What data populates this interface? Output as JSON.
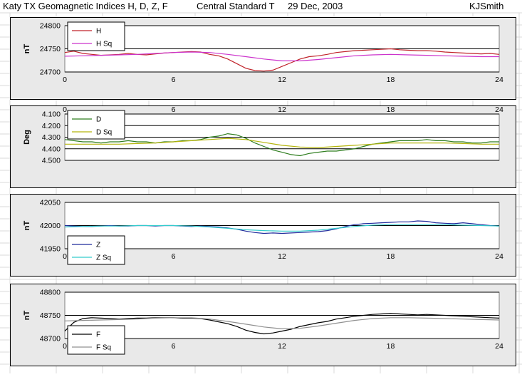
{
  "header": {
    "title": "Katy TX Geomagnetic Indices H, D, Z, F",
    "timezone": "Central Standard T",
    "date": "29 Dec, 2003",
    "author": "KJSmith"
  },
  "colors": {
    "h": "#c0232a",
    "h_sq": "#cc33cc",
    "d": "#2e7d1e",
    "d_sq": "#b5b50c",
    "z": "#1f2a9c",
    "z_sq": "#33cccc",
    "f": "#000000",
    "f_sq": "#909090",
    "panel_bg": "#e9e9e9",
    "plot_bg": "#ffffff"
  },
  "chart_data": [
    {
      "type": "line",
      "title": "",
      "xlabel": "",
      "ylabel": "nT",
      "xlim": [
        0,
        24
      ],
      "ylim": [
        24700,
        24800
      ],
      "x_ticks": [
        "0",
        "6",
        "12",
        "18",
        "24"
      ],
      "y_ticks": [
        "24800",
        "24750",
        "24700"
      ],
      "x_axis_position": "bottom",
      "grid": true,
      "legend": "top-left",
      "series": [
        {
          "name": "H",
          "color": "#c0232a",
          "x": [
            0,
            0.5,
            1,
            1.5,
            2,
            2.5,
            3,
            3.5,
            4,
            4.5,
            5,
            5.5,
            6,
            6.5,
            7,
            7.5,
            8,
            8.5,
            9,
            9.5,
            10,
            10.5,
            11,
            11.5,
            12,
            12.5,
            13,
            13.5,
            14,
            14.5,
            15,
            15.5,
            16,
            16.5,
            17,
            17.5,
            18,
            18.5,
            19,
            19.5,
            20,
            20.5,
            21,
            21.5,
            22,
            22.5,
            23,
            23.5,
            24
          ],
          "y": [
            24742,
            24745,
            24740,
            24738,
            24736,
            24737,
            24738,
            24740,
            24738,
            24737,
            24739,
            24741,
            24742,
            24743,
            24744,
            24743,
            24738,
            24735,
            24728,
            24718,
            24708,
            24703,
            24702,
            24704,
            24712,
            24720,
            24728,
            24733,
            24735,
            24738,
            24742,
            24744,
            24746,
            24747,
            24748,
            24749,
            24750,
            24748,
            24747,
            24746,
            24746,
            24745,
            24743,
            24742,
            24741,
            24740,
            24739,
            24740,
            24738
          ]
        },
        {
          "name": "H Sq",
          "color": "#cc33cc",
          "x": [
            0,
            1,
            2,
            3,
            4,
            5,
            6,
            7,
            8,
            9,
            10,
            11,
            12,
            13,
            14,
            15,
            16,
            17,
            18,
            19,
            20,
            21,
            22,
            23,
            24
          ],
          "y": [
            24734,
            24735,
            24736,
            24737,
            24738,
            24740,
            24742,
            24743,
            24742,
            24738,
            24733,
            24728,
            24724,
            24724,
            24727,
            24731,
            24735,
            24737,
            24738,
            24737,
            24736,
            24735,
            24734,
            24733,
            24733
          ]
        }
      ]
    },
    {
      "type": "line",
      "title": "",
      "xlabel": "",
      "ylabel": "Deg",
      "xlim": [
        0,
        24
      ],
      "ylim": [
        4.1,
        4.5
      ],
      "y_inverted": true,
      "x_ticks": [
        "0",
        "6",
        "12",
        "18",
        "24"
      ],
      "y_ticks": [
        "4.100",
        "4.200",
        "4.300",
        "4.400",
        "4.500"
      ],
      "x_axis_position": "top",
      "grid": true,
      "legend": "top-left",
      "series": [
        {
          "name": "D",
          "color": "#2e7d1e",
          "x": [
            0,
            0.5,
            1,
            1.5,
            2,
            2.5,
            3,
            3.5,
            4,
            4.5,
            5,
            5.5,
            6,
            6.5,
            7,
            7.5,
            8,
            8.5,
            9,
            9.5,
            10,
            10.5,
            11,
            11.5,
            12,
            12.5,
            13,
            13.5,
            14,
            14.5,
            15,
            15.5,
            16,
            16.5,
            17,
            17.5,
            18,
            18.5,
            19,
            19.5,
            20,
            20.5,
            21,
            21.5,
            22,
            22.5,
            23,
            23.5,
            24
          ],
          "y": [
            4.32,
            4.33,
            4.34,
            4.34,
            4.35,
            4.34,
            4.34,
            4.33,
            4.34,
            4.34,
            4.35,
            4.34,
            4.34,
            4.33,
            4.33,
            4.32,
            4.3,
            4.29,
            4.27,
            4.28,
            4.31,
            4.35,
            4.38,
            4.41,
            4.43,
            4.45,
            4.46,
            4.44,
            4.43,
            4.42,
            4.42,
            4.41,
            4.4,
            4.38,
            4.36,
            4.35,
            4.34,
            4.33,
            4.33,
            4.33,
            4.32,
            4.33,
            4.33,
            4.34,
            4.34,
            4.35,
            4.35,
            4.34,
            4.34
          ]
        },
        {
          "name": "D Sq",
          "color": "#b5b50c",
          "x": [
            0,
            1,
            2,
            3,
            4,
            5,
            6,
            7,
            8,
            9,
            10,
            11,
            12,
            13,
            14,
            15,
            16,
            17,
            18,
            19,
            20,
            21,
            22,
            23,
            24
          ],
          "y": [
            4.36,
            4.36,
            4.36,
            4.36,
            4.355,
            4.35,
            4.34,
            4.33,
            4.32,
            4.31,
            4.32,
            4.345,
            4.37,
            4.385,
            4.39,
            4.38,
            4.37,
            4.36,
            4.35,
            4.35,
            4.35,
            4.35,
            4.355,
            4.36,
            4.36
          ]
        }
      ]
    },
    {
      "type": "line",
      "title": "",
      "xlabel": "",
      "ylabel": "nT",
      "xlim": [
        0,
        24
      ],
      "ylim": [
        41950,
        42050
      ],
      "x_ticks": [
        "0",
        "6",
        "12",
        "18",
        "24"
      ],
      "y_ticks": [
        "42050",
        "42000",
        "41950"
      ],
      "x_axis_position": "bottom",
      "grid": true,
      "legend": "bottom-left",
      "series": [
        {
          "name": "Z",
          "color": "#1f2a9c",
          "x": [
            0,
            0.5,
            1,
            1.5,
            2,
            2.5,
            3,
            3.5,
            4,
            4.5,
            5,
            5.5,
            6,
            6.5,
            7,
            7.5,
            8,
            8.5,
            9,
            9.5,
            10,
            10.5,
            11,
            11.5,
            12,
            12.5,
            13,
            13.5,
            14,
            14.5,
            15,
            15.5,
            16,
            16.5,
            17,
            17.5,
            18,
            18.5,
            19,
            19.5,
            20,
            20.5,
            21,
            21.5,
            22,
            22.5,
            23,
            23.5,
            24
          ],
          "y": [
            42000,
            41999,
            41998,
            41998,
            41999,
            42000,
            41999,
            41999,
            42000,
            42000,
            41999,
            42000,
            42000,
            41999,
            41998,
            41999,
            41998,
            41997,
            41995,
            41992,
            41988,
            41985,
            41983,
            41984,
            41983,
            41984,
            41985,
            41986,
            41987,
            41989,
            41993,
            41998,
            42002,
            42004,
            42005,
            42006,
            42007,
            42008,
            42008,
            42010,
            42009,
            42006,
            42005,
            42004,
            42006,
            42004,
            42002,
            42000,
            41999
          ]
        },
        {
          "name": "Z Sq",
          "color": "#33cccc",
          "x": [
            0,
            1,
            2,
            3,
            4,
            5,
            6,
            7,
            8,
            9,
            10,
            11,
            12,
            13,
            14,
            15,
            16,
            17,
            18,
            19,
            20,
            21,
            22,
            23,
            24
          ],
          "y": [
            41997,
            41998,
            41999,
            41999,
            42000,
            42000,
            42000,
            41999,
            41997,
            41994,
            41991,
            41989,
            41988,
            41988,
            41990,
            41994,
            41998,
            42001,
            42002,
            42002,
            42002,
            42002,
            42001,
            42000,
            41999
          ]
        }
      ]
    },
    {
      "type": "line",
      "title": "",
      "xlabel": "",
      "ylabel": "nT",
      "xlim": [
        0,
        24
      ],
      "ylim": [
        48700,
        48800
      ],
      "x_ticks": [
        "0",
        "6",
        "12",
        "18",
        "24"
      ],
      "y_ticks": [
        "48800",
        "48750",
        "48700"
      ],
      "x_axis_position": "bottom",
      "grid": true,
      "legend": "bottom-left",
      "series": [
        {
          "name": "F",
          "color": "#000000",
          "x": [
            0,
            0.5,
            1,
            1.5,
            2,
            2.5,
            3,
            3.5,
            4,
            4.5,
            5,
            5.5,
            6,
            6.5,
            7,
            7.5,
            8,
            8.5,
            9,
            9.5,
            10,
            10.5,
            11,
            11.5,
            12,
            12.5,
            13,
            13.5,
            14,
            14.5,
            15,
            15.5,
            16,
            16.5,
            17,
            17.5,
            18,
            18.5,
            19,
            19.5,
            20,
            20.5,
            21,
            21.5,
            22,
            22.5,
            23,
            23.5,
            24
          ],
          "y": [
            48716,
            48735,
            48743,
            48745,
            48744,
            48743,
            48742,
            48743,
            48744,
            48744,
            48745,
            48745,
            48745,
            48744,
            48744,
            48743,
            48740,
            48736,
            48732,
            48726,
            48718,
            48713,
            48710,
            48712,
            48716,
            48720,
            48726,
            48730,
            48734,
            48737,
            48742,
            48745,
            48748,
            48750,
            48752,
            48753,
            48754,
            48753,
            48752,
            48751,
            48752,
            48751,
            48750,
            48749,
            48748,
            48747,
            48746,
            48745,
            48744
          ]
        },
        {
          "name": "F Sq",
          "color": "#909090",
          "x": [
            0,
            1,
            2,
            3,
            4,
            5,
            6,
            7,
            8,
            9,
            10,
            11,
            12,
            13,
            14,
            15,
            16,
            17,
            18,
            19,
            20,
            21,
            22,
            23,
            24
          ],
          "y": [
            48738,
            48739,
            48740,
            48741,
            48742,
            48744,
            48745,
            48745,
            48742,
            48737,
            48731,
            48725,
            48721,
            48722,
            48727,
            48733,
            48739,
            48743,
            48745,
            48745,
            48744,
            48743,
            48742,
            48741,
            48740
          ]
        }
      ]
    }
  ]
}
